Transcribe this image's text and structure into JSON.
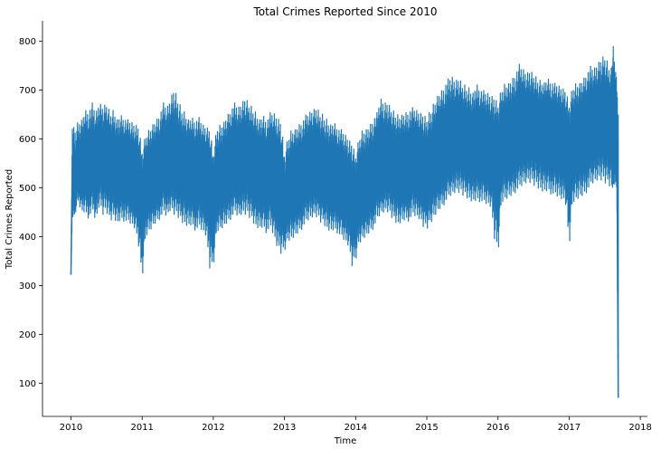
{
  "chart_data": {
    "type": "line",
    "title": "Total Crimes Reported Since 2010",
    "xlabel": "Time",
    "ylabel": "Total Crimes Reported",
    "xlim": [
      2009.6,
      2018.1
    ],
    "ylim": [
      32,
      842
    ],
    "x_ticks": [
      "2010",
      "2011",
      "2012",
      "2013",
      "2014",
      "2015",
      "2016",
      "2017",
      "2018"
    ],
    "y_ticks": [
      "100",
      "200",
      "300",
      "400",
      "500",
      "600",
      "700",
      "800"
    ],
    "grid": false,
    "legend": "none",
    "series": [
      {
        "color": "#1f77b4",
        "x": [
          2010.0,
          2010.02,
          2010.05,
          2010.1,
          2010.15,
          2010.2,
          2010.25,
          2010.3,
          2010.35,
          2010.4,
          2010.45,
          2010.5,
          2010.55,
          2010.6,
          2010.65,
          2010.7,
          2010.75,
          2010.8,
          2010.85,
          2010.9,
          2010.95,
          2011.0,
          2011.05,
          2011.1,
          2011.15,
          2011.2,
          2011.25,
          2011.3,
          2011.35,
          2011.4,
          2011.45,
          2011.5,
          2011.55,
          2011.6,
          2011.65,
          2011.7,
          2011.75,
          2011.8,
          2011.85,
          2011.9,
          2011.95,
          2012.0,
          2012.05,
          2012.1,
          2012.15,
          2012.2,
          2012.25,
          2012.3,
          2012.35,
          2012.4,
          2012.45,
          2012.5,
          2012.55,
          2012.6,
          2012.65,
          2012.7,
          2012.75,
          2012.8,
          2012.85,
          2012.9,
          2012.95,
          2013.0,
          2013.05,
          2013.1,
          2013.15,
          2013.2,
          2013.25,
          2013.3,
          2013.35,
          2013.4,
          2013.45,
          2013.5,
          2013.55,
          2013.6,
          2013.65,
          2013.7,
          2013.75,
          2013.8,
          2013.85,
          2013.9,
          2013.95,
          2014.0,
          2014.05,
          2014.1,
          2014.15,
          2014.2,
          2014.25,
          2014.3,
          2014.35,
          2014.4,
          2014.45,
          2014.5,
          2014.55,
          2014.6,
          2014.65,
          2014.7,
          2014.75,
          2014.8,
          2014.85,
          2014.9,
          2014.95,
          2015.0,
          2015.05,
          2015.1,
          2015.15,
          2015.2,
          2015.25,
          2015.3,
          2015.35,
          2015.4,
          2015.45,
          2015.5,
          2015.55,
          2015.6,
          2015.65,
          2015.7,
          2015.75,
          2015.8,
          2015.85,
          2015.9,
          2015.95,
          2016.0,
          2016.05,
          2016.1,
          2016.15,
          2016.2,
          2016.25,
          2016.3,
          2016.35,
          2016.4,
          2016.45,
          2016.5,
          2016.55,
          2016.6,
          2016.65,
          2016.7,
          2016.75,
          2016.8,
          2016.85,
          2016.9,
          2016.95,
          2017.0,
          2017.05,
          2017.1,
          2017.15,
          2017.2,
          2017.25,
          2017.3,
          2017.35,
          2017.4,
          2017.45,
          2017.5,
          2017.55,
          2017.6,
          2017.62,
          2017.65,
          2017.67,
          2017.69
        ],
        "y": [
          322,
          565,
          480,
          550,
          530,
          560,
          545,
          560,
          540,
          580,
          560,
          570,
          555,
          560,
          540,
          550,
          545,
          540,
          530,
          530,
          520,
          470,
          508,
          520,
          530,
          540,
          545,
          560,
          550,
          565,
          570,
          560,
          550,
          545,
          540,
          545,
          535,
          540,
          530,
          520,
          515,
          470,
          520,
          525,
          535,
          545,
          550,
          560,
          555,
          560,
          565,
          560,
          550,
          545,
          540,
          545,
          535,
          540,
          530,
          525,
          520,
          460,
          500,
          510,
          515,
          525,
          530,
          540,
          545,
          550,
          555,
          545,
          540,
          530,
          525,
          530,
          520,
          515,
          505,
          495,
          480,
          465,
          500,
          510,
          515,
          525,
          530,
          545,
          555,
          560,
          565,
          555,
          545,
          540,
          545,
          550,
          550,
          560,
          555,
          550,
          540,
          535,
          545,
          560,
          570,
          580,
          585,
          595,
          600,
          605,
          610,
          605,
          600,
          595,
          590,
          600,
          595,
          590,
          585,
          580,
          575,
          560,
          595,
          600,
          605,
          610,
          615,
          620,
          625,
          630,
          635,
          630,
          625,
          620,
          620,
          625,
          615,
          610,
          605,
          600,
          595,
          560,
          600,
          605,
          610,
          615,
          620,
          630,
          635,
          640,
          645,
          640,
          635,
          630,
          640,
          630,
          620,
          70
        ],
        "envelope_high": [
          330,
          630,
          630,
          640,
          650,
          670,
          665,
          680,
          660,
          680,
          670,
          680,
          660,
          665,
          650,
          660,
          650,
          645,
          640,
          635,
          630,
          585,
          615,
          625,
          640,
          650,
          660,
          680,
          670,
          690,
          710,
          690,
          670,
          660,
          650,
          655,
          645,
          650,
          635,
          630,
          625,
          580,
          630,
          635,
          645,
          660,
          670,
          680,
          670,
          680,
          690,
          680,
          670,
          660,
          650,
          660,
          645,
          660,
          660,
          650,
          640,
          580,
          610,
          625,
          630,
          640,
          645,
          655,
          660,
          665,
          670,
          660,
          655,
          645,
          640,
          645,
          630,
          625,
          615,
          605,
          595,
          575,
          610,
          625,
          630,
          640,
          650,
          660,
          690,
          680,
          680,
          670,
          660,
          655,
          660,
          665,
          665,
          670,
          665,
          660,
          655,
          650,
          665,
          680,
          700,
          710,
          720,
          730,
          735,
          725,
          730,
          720,
          715,
          710,
          705,
          725,
          710,
          705,
          700,
          695,
          690,
          680,
          710,
          720,
          725,
          735,
          745,
          760,
          750,
          740,
          745,
          740,
          730,
          725,
          725,
          735,
          725,
          720,
          715,
          710,
          705,
          680,
          715,
          720,
          725,
          735,
          745,
          755,
          750,
          760,
          770,
          780,
          760,
          750,
          805,
          750,
          740,
          650
        ],
        "envelope_low": [
          322,
          440,
          440,
          470,
          450,
          450,
          435,
          450,
          425,
          460,
          445,
          450,
          430,
          440,
          425,
          435,
          430,
          425,
          420,
          410,
          380,
          310,
          400,
          410,
          420,
          430,
          435,
          445,
          435,
          450,
          445,
          440,
          430,
          425,
          420,
          425,
          410,
          415,
          405,
          395,
          335,
          335,
          410,
          415,
          420,
          430,
          435,
          445,
          435,
          440,
          445,
          440,
          430,
          420,
          415,
          420,
          405,
          415,
          395,
          370,
          365,
          370,
          390,
          395,
          400,
          410,
          415,
          425,
          430,
          435,
          440,
          430,
          425,
          415,
          410,
          415,
          405,
          395,
          385,
          375,
          340,
          350,
          385,
          395,
          400,
          410,
          415,
          430,
          440,
          445,
          450,
          440,
          430,
          425,
          430,
          435,
          430,
          440,
          435,
          430,
          420,
          415,
          425,
          440,
          450,
          460,
          465,
          475,
          480,
          485,
          490,
          485,
          480,
          475,
          470,
          475,
          470,
          465,
          460,
          455,
          395,
          360,
          470,
          475,
          480,
          485,
          490,
          495,
          500,
          505,
          510,
          505,
          500,
          495,
          490,
          495,
          485,
          480,
          475,
          470,
          465,
          375,
          470,
          475,
          480,
          485,
          490,
          500,
          505,
          510,
          515,
          510,
          505,
          500,
          500,
          510,
          500,
          70
        ]
      }
    ]
  }
}
